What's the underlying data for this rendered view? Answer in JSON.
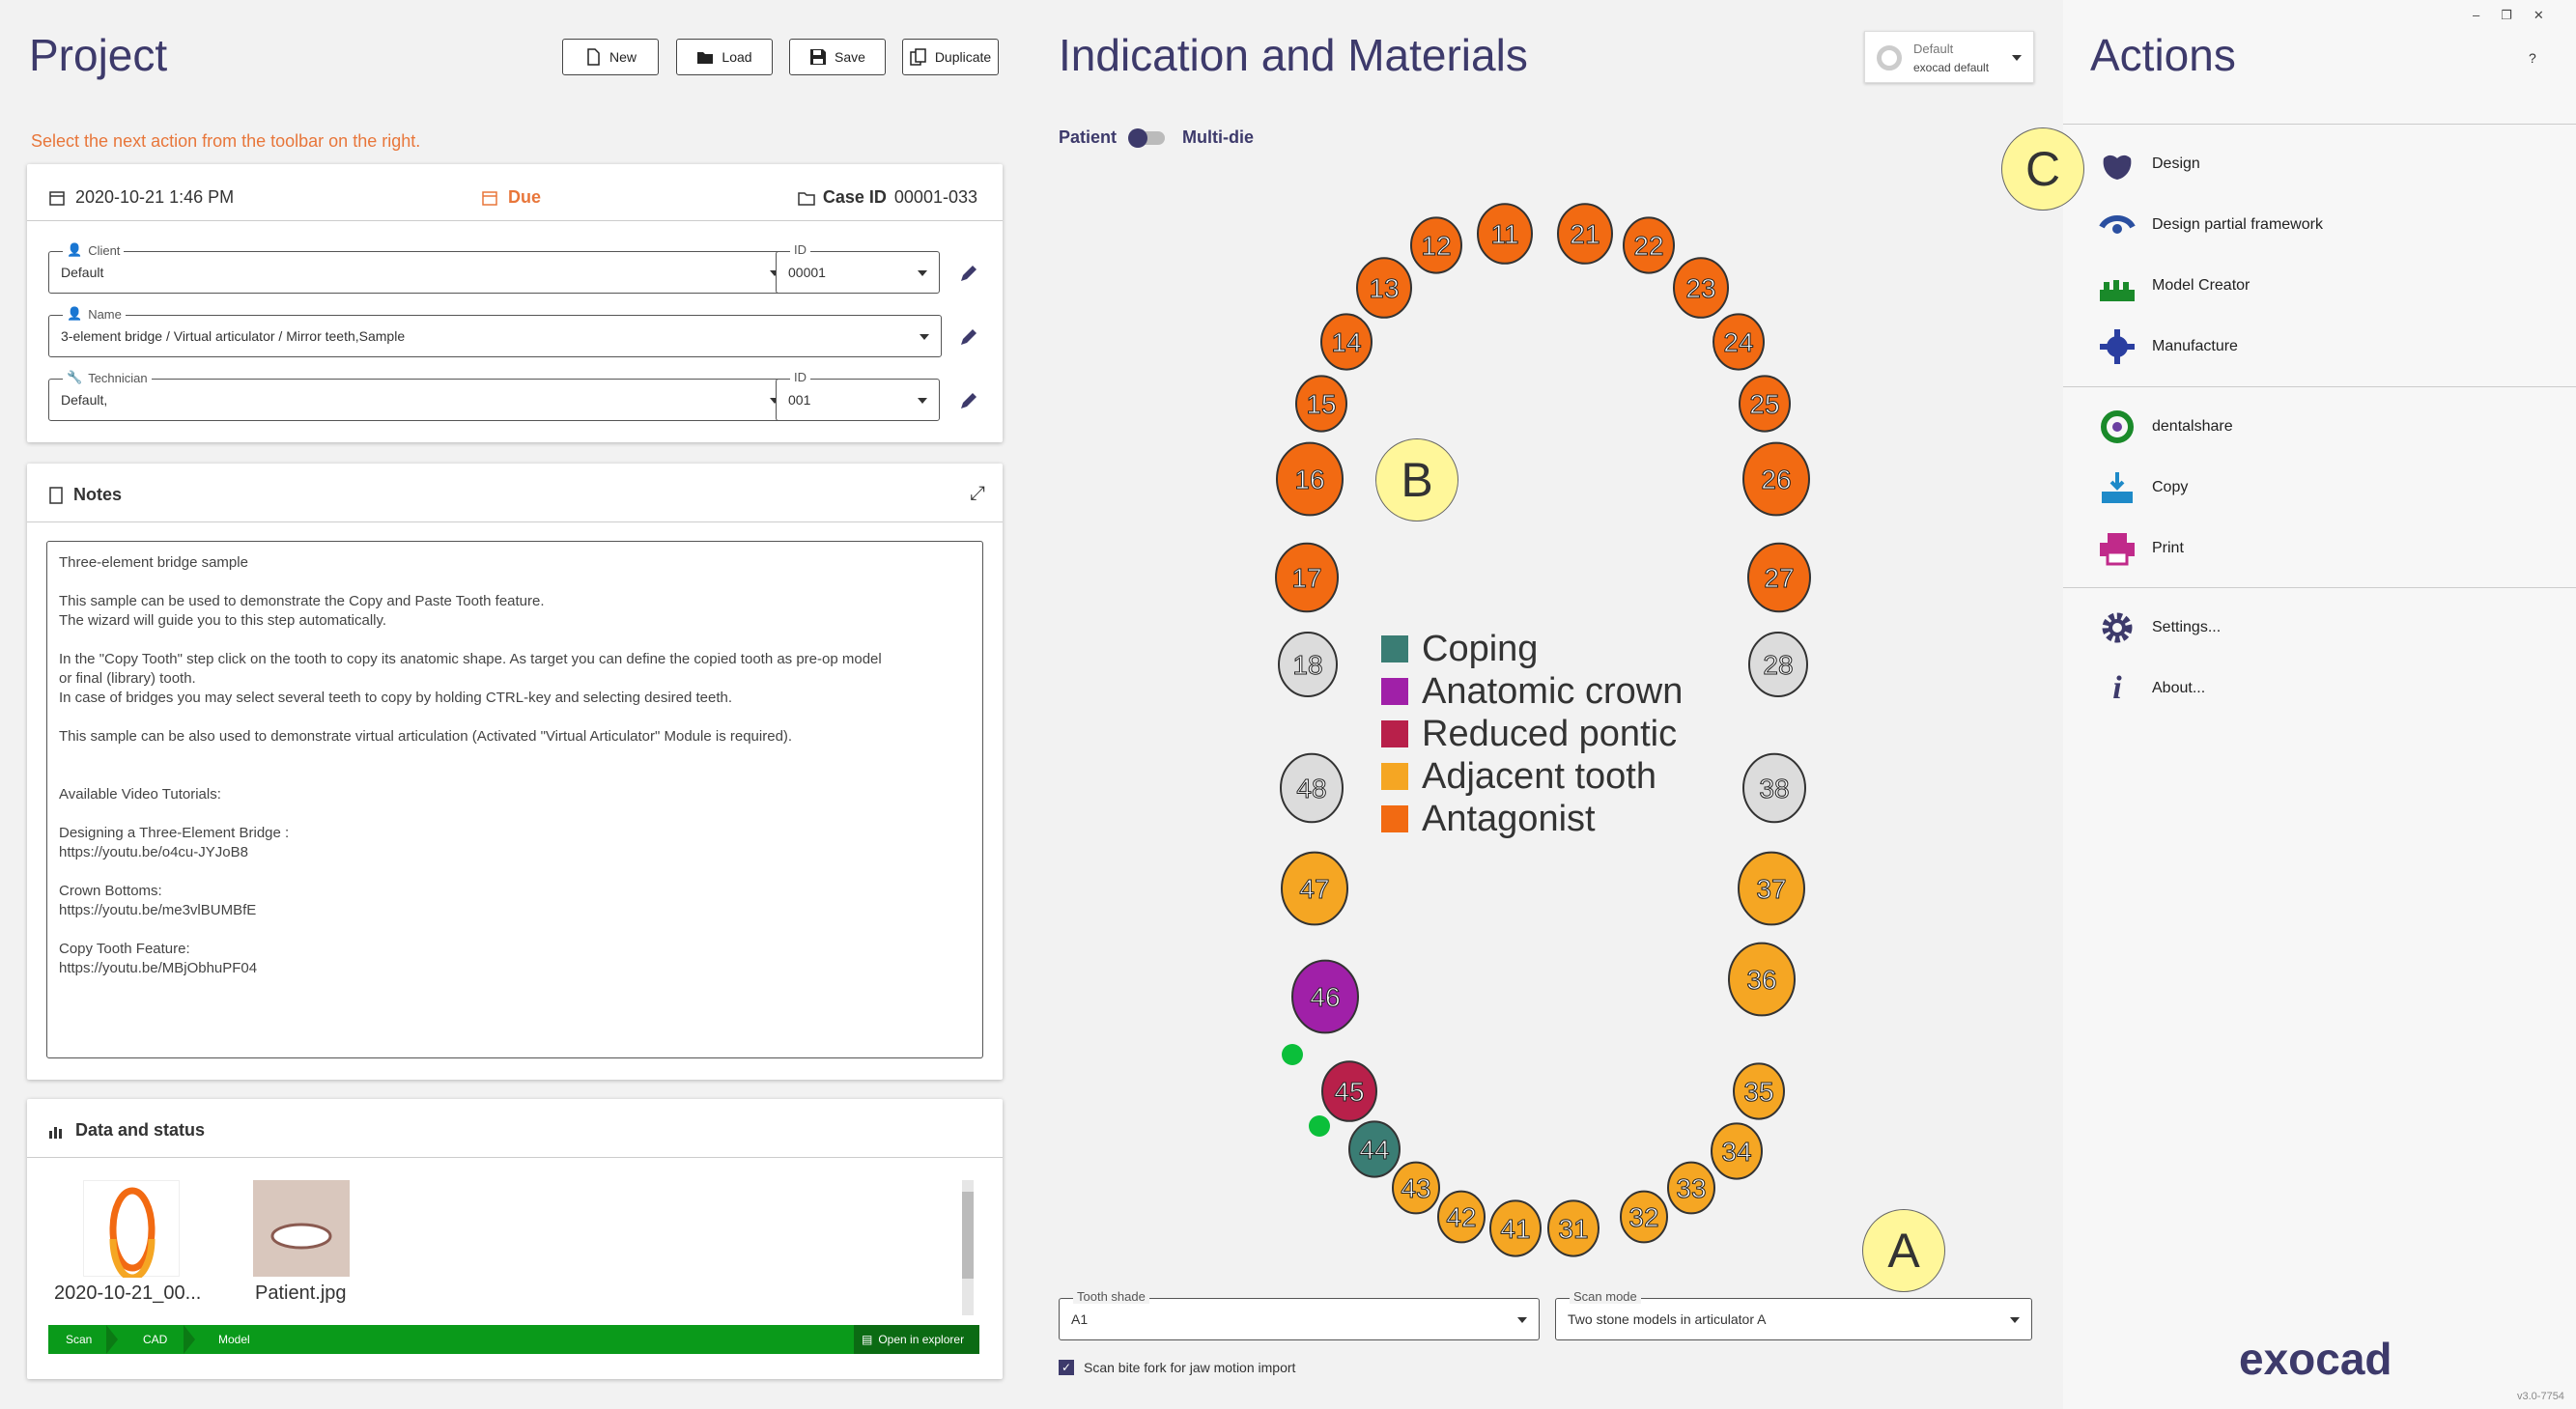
{
  "project": {
    "title": "Project",
    "toolbar": {
      "new": "New",
      "load": "Load",
      "save": "Save",
      "duplicate": "Duplicate"
    },
    "hint": "Select the next action from the toolbar on the right.",
    "info": {
      "date": "2020-10-21 1:46 PM",
      "due": "Due",
      "case_id_label": "Case ID",
      "case_id": "00001-033"
    },
    "client": {
      "label": "Client",
      "value": "Default",
      "id_label": "ID",
      "id": "00001"
    },
    "name": {
      "label": "Name",
      "value": "3-element bridge / Virtual articulator / Mirror teeth,Sample"
    },
    "technician": {
      "label": "Technician",
      "value": "Default,",
      "id_label": "ID",
      "id": "001"
    },
    "notes": {
      "title": "Notes",
      "lines": [
        "Three-element bridge sample",
        "",
        "This sample can be used to demonstrate the Copy and Paste Tooth feature.",
        "The wizard will guide you to this step automatically.",
        "",
        "In the \"Copy Tooth\" step click on the tooth to copy its anatomic shape. As target you can define the copied tooth as pre-op model",
        "or final (library) tooth.",
        "In case of bridges you may select several teeth to copy by holding CTRL-key and selecting desired teeth.",
        "",
        "This sample can be also used to demonstrate virtual articulation (Activated \"Virtual Articulator\" Module is required).",
        "",
        "",
        "Available Video Tutorials:",
        "",
        "Designing a Three-Element Bridge :",
        "https://youtu.be/o4cu-JYJoB8",
        "",
        "Crown Bottoms:",
        "https://youtu.be/me3vlBUMBfE",
        "",
        "Copy Tooth Feature:",
        "https://youtu.be/MBjObhuPF04"
      ]
    },
    "data_status": {
      "title": "Data and status",
      "files": [
        {
          "name": "2020-10-21_00..."
        },
        {
          "name": "Patient.jpg"
        }
      ],
      "steps": [
        "Scan",
        "CAD",
        "Model"
      ],
      "open_explorer": "Open in explorer"
    }
  },
  "indication": {
    "title": "Indication and Materials",
    "preset": {
      "line1": "Default",
      "line2": "exocad default"
    },
    "toggle_left": "Patient",
    "toggle_right": "Multi-die",
    "legend": [
      {
        "label": "Coping",
        "color": "#3a7d74"
      },
      {
        "label": "Anatomic crown",
        "color": "#a020a8"
      },
      {
        "label": "Reduced pontic",
        "color": "#b8204a"
      },
      {
        "label": "Adjacent tooth",
        "color": "#f5a623"
      },
      {
        "label": "Antagonist",
        "color": "#f26a12"
      }
    ],
    "teeth": [
      {
        "n": "11",
        "mat": "antagonist"
      },
      {
        "n": "12",
        "mat": "antagonist"
      },
      {
        "n": "13",
        "mat": "antagonist"
      },
      {
        "n": "14",
        "mat": "antagonist"
      },
      {
        "n": "15",
        "mat": "antagonist"
      },
      {
        "n": "16",
        "mat": "antagonist"
      },
      {
        "n": "17",
        "mat": "antagonist"
      },
      {
        "n": "18",
        "mat": "none"
      },
      {
        "n": "21",
        "mat": "antagonist"
      },
      {
        "n": "22",
        "mat": "antagonist"
      },
      {
        "n": "23",
        "mat": "antagonist"
      },
      {
        "n": "24",
        "mat": "antagonist"
      },
      {
        "n": "25",
        "mat": "antagonist"
      },
      {
        "n": "26",
        "mat": "antagonist"
      },
      {
        "n": "27",
        "mat": "antagonist"
      },
      {
        "n": "28",
        "mat": "none"
      },
      {
        "n": "31",
        "mat": "adjacent"
      },
      {
        "n": "32",
        "mat": "adjacent"
      },
      {
        "n": "33",
        "mat": "adjacent"
      },
      {
        "n": "34",
        "mat": "adjacent"
      },
      {
        "n": "35",
        "mat": "adjacent"
      },
      {
        "n": "36",
        "mat": "adjacent"
      },
      {
        "n": "37",
        "mat": "adjacent"
      },
      {
        "n": "38",
        "mat": "none"
      },
      {
        "n": "41",
        "mat": "adjacent"
      },
      {
        "n": "42",
        "mat": "adjacent"
      },
      {
        "n": "43",
        "mat": "adjacent"
      },
      {
        "n": "44",
        "mat": "coping"
      },
      {
        "n": "45",
        "mat": "reduced"
      },
      {
        "n": "46",
        "mat": "anatomic"
      },
      {
        "n": "47",
        "mat": "adjacent"
      },
      {
        "n": "48",
        "mat": "none"
      }
    ],
    "markers": {
      "a": "A",
      "b": "B",
      "c": "C"
    },
    "tooth_shade": {
      "label": "Tooth shade",
      "value": "A1"
    },
    "scan_mode": {
      "label": "Scan mode",
      "value": "Two stone models in articulator A"
    },
    "scan_bite": {
      "label": "Scan bite fork for jaw motion import",
      "checked": true
    }
  },
  "actions": {
    "title": "Actions",
    "help": "?",
    "items": [
      {
        "label": "Design",
        "icon": "design-icon"
      },
      {
        "label": "Design partial framework",
        "icon": "partial-framework-icon"
      },
      {
        "label": "Model Creator",
        "icon": "model-creator-icon"
      },
      {
        "label": "Manufacture",
        "icon": "manufacture-icon"
      },
      {
        "label": "dentalshare",
        "icon": "dentalshare-icon"
      },
      {
        "label": "Copy",
        "icon": "copy-icon"
      },
      {
        "label": "Print",
        "icon": "print-icon"
      },
      {
        "label": "Settings...",
        "icon": "gear-icon"
      },
      {
        "label": "About...",
        "icon": "info-icon"
      }
    ],
    "logo": "exocad",
    "version": "v3.0-7754"
  },
  "colors": {
    "antagonist": "#f26a12",
    "adjacent": "#f5a623",
    "coping": "#3a7d74",
    "anatomic": "#a020a8",
    "reduced": "#b8204a",
    "none": "#dcdcdc",
    "accent": "#3d3a6b",
    "hint": "#e8763a"
  }
}
